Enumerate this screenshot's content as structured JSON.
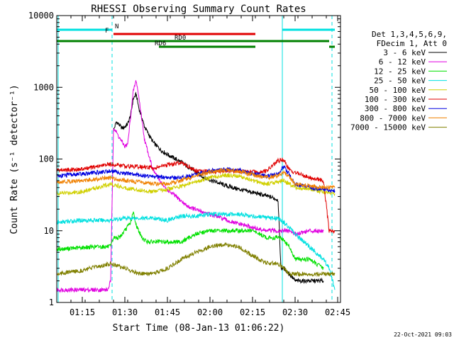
{
  "chart_data": {
    "type": "line",
    "title": "RHESSI Observing Summary Count Rates",
    "xlabel": "Start Time (08-Jan-13 01:06:22)",
    "ylabel": "Count Rate (s⁻¹ detector⁻¹)",
    "xlim": [
      "01:06",
      "02:46"
    ],
    "ylim": [
      1,
      10000
    ],
    "yscale": "log",
    "x_ticks": [
      "01:15",
      "01:30",
      "01:45",
      "02:00",
      "02:15",
      "02:30",
      "02:45"
    ],
    "y_ticks": [
      "1",
      "10",
      "100",
      "1000",
      "10000"
    ],
    "legend": {
      "placement": "right",
      "header": [
        "Det 1,3,4,5,6,9,",
        "FDecim 1, Att 0"
      ]
    },
    "timestamp": "22-Oct-2021 09:03",
    "flags": [
      {
        "label": "N",
        "color": "#00e0e0",
        "segments": [
          [
            "01:06",
            "01:25:30"
          ],
          [
            "02:25:30",
            "02:44"
          ]
        ]
      },
      {
        "label": "F",
        "color": "#e00000",
        "segments": [
          [
            "01:26",
            "02:16"
          ]
        ]
      },
      {
        "label": "RD0",
        "color": "#008000",
        "segments": [
          [
            "01:06",
            "02:16"
          ],
          [
            "02:16",
            "02:42"
          ]
        ]
      },
      {
        "label": "RD6",
        "color": "#008000",
        "segments": [
          [
            "01:42",
            "02:16"
          ],
          [
            "02:42",
            "02:44"
          ]
        ]
      }
    ],
    "series": [
      {
        "name": "3 - 6 keV",
        "color": "#000000",
        "x": [
          "01:26",
          "01:27",
          "01:28",
          "01:29",
          "01:30",
          "01:31",
          "01:32",
          "01:33",
          "01:34",
          "01:35",
          "01:37",
          "01:40",
          "01:43",
          "01:46",
          "01:50",
          "01:54",
          "01:58",
          "02:02",
          "02:06",
          "02:10",
          "02:14",
          "02:18",
          "02:22",
          "02:24",
          "02:25",
          "02:26",
          "02:28",
          "02:30",
          "02:35",
          "02:40"
        ],
        "y": [
          250,
          330,
          300,
          270,
          280,
          310,
          400,
          700,
          800,
          500,
          280,
          170,
          130,
          110,
          90,
          70,
          55,
          48,
          42,
          38,
          35,
          32,
          29,
          27,
          3,
          3,
          2.5,
          2,
          2,
          2
        ]
      },
      {
        "name": "6 - 12 keV",
        "color": "#e000e0",
        "x": [
          "01:06",
          "01:24",
          "01:25",
          "01:26",
          "01:28",
          "01:30",
          "01:31",
          "01:33",
          "01:34",
          "01:35",
          "01:37",
          "01:40",
          "01:44",
          "01:48",
          "01:52",
          "01:56",
          "02:00",
          "02:04",
          "02:08",
          "02:12",
          "02:15",
          "02:20",
          "02:24",
          "02:25",
          "02:28",
          "02:30",
          "02:35",
          "02:40"
        ],
        "y": [
          1.5,
          1.5,
          2,
          280,
          200,
          150,
          160,
          900,
          1250,
          700,
          180,
          70,
          40,
          30,
          22,
          19,
          17,
          15,
          13,
          12,
          11,
          10,
          10,
          10,
          10,
          9,
          10,
          10
        ]
      },
      {
        "name": "12 - 25 keV",
        "color": "#00e000",
        "x": [
          "01:06",
          "01:20",
          "01:25",
          "01:26",
          "01:28",
          "01:30",
          "01:32",
          "01:33",
          "01:34",
          "01:36",
          "01:38",
          "01:42",
          "01:46",
          "01:50",
          "01:55",
          "02:00",
          "02:05",
          "02:10",
          "02:15",
          "02:20",
          "02:24",
          "02:25",
          "02:28",
          "02:30",
          "02:35",
          "02:40"
        ],
        "y": [
          5.5,
          6,
          6,
          8,
          8,
          10,
          13,
          18,
          12,
          8,
          7,
          7,
          7,
          7,
          9,
          10,
          10,
          10,
          10,
          8,
          8,
          8,
          6,
          4,
          4,
          3
        ]
      },
      {
        "name": "25 - 50 keV",
        "color": "#00e0e0",
        "x": [
          "01:06",
          "01:15",
          "01:25",
          "01:30",
          "01:40",
          "01:45",
          "01:50",
          "01:55",
          "02:00",
          "02:05",
          "02:10",
          "02:15",
          "02:20",
          "02:24",
          "02:26",
          "02:28",
          "02:30",
          "02:35",
          "02:40",
          "02:42",
          "02:44"
        ],
        "y": [
          13,
          14,
          14,
          15,
          15,
          14,
          16,
          16,
          17,
          17,
          17,
          16,
          15,
          15,
          13,
          11,
          9,
          6,
          4,
          3,
          1.5
        ]
      },
      {
        "name": "50 - 100 keV",
        "color": "#d0d000",
        "x": [
          "01:06",
          "01:15",
          "01:25",
          "01:30",
          "01:35",
          "01:40",
          "01:45",
          "01:50",
          "01:55",
          "02:00",
          "02:05",
          "02:10",
          "02:15",
          "02:20",
          "02:24",
          "02:26",
          "02:28",
          "02:30",
          "02:35",
          "02:40",
          "02:44"
        ],
        "y": [
          33,
          35,
          45,
          40,
          37,
          35,
          38,
          42,
          48,
          55,
          60,
          58,
          50,
          45,
          48,
          50,
          45,
          40,
          38,
          35,
          33
        ]
      },
      {
        "name": "100 - 300 keV",
        "color": "#e00000",
        "x": [
          "01:06",
          "01:15",
          "01:25",
          "01:30",
          "01:35",
          "01:40",
          "01:45",
          "01:50",
          "01:55",
          "02:00",
          "02:05",
          "02:10",
          "02:15",
          "02:20",
          "02:24",
          "02:26",
          "02:28",
          "02:30",
          "02:35",
          "02:40",
          "02:42",
          "02:44"
        ],
        "y": [
          70,
          72,
          85,
          80,
          78,
          75,
          82,
          90,
          68,
          66,
          68,
          68,
          66,
          68,
          95,
          98,
          70,
          65,
          55,
          50,
          10,
          10
        ]
      },
      {
        "name": "300 - 800 keV",
        "color": "#0000e0",
        "x": [
          "01:06",
          "01:15",
          "01:25",
          "01:30",
          "01:35",
          "01:40",
          "01:45",
          "01:50",
          "01:55",
          "02:00",
          "02:05",
          "02:10",
          "02:15",
          "02:20",
          "02:24",
          "02:26",
          "02:28",
          "02:30",
          "02:35",
          "02:40",
          "02:44"
        ],
        "y": [
          58,
          62,
          68,
          63,
          60,
          57,
          55,
          55,
          60,
          68,
          72,
          70,
          62,
          58,
          62,
          80,
          60,
          45,
          40,
          38,
          36
        ]
      },
      {
        "name": "800 - 7000 keV",
        "color": "#f08000",
        "x": [
          "01:06",
          "01:15",
          "01:25",
          "01:30",
          "01:35",
          "01:40",
          "01:45",
          "01:50",
          "01:55",
          "02:00",
          "02:05",
          "02:10",
          "02:15",
          "02:20",
          "02:24",
          "02:26",
          "02:28",
          "02:30",
          "02:35",
          "02:40",
          "02:44"
        ],
        "y": [
          48,
          50,
          55,
          50,
          48,
          45,
          45,
          50,
          58,
          65,
          70,
          68,
          60,
          55,
          58,
          65,
          55,
          45,
          42,
          40,
          40
        ]
      },
      {
        "name": "7000 - 15000 keV",
        "color": "#808000",
        "x": [
          "01:06",
          "01:15",
          "01:25",
          "01:30",
          "01:35",
          "01:40",
          "01:45",
          "01:50",
          "01:55",
          "02:00",
          "02:05",
          "02:10",
          "02:15",
          "02:20",
          "02:24",
          "02:26",
          "02:28",
          "02:30",
          "02:35",
          "02:40",
          "02:44"
        ],
        "y": [
          2.5,
          2.8,
          3.5,
          3,
          2.5,
          2.5,
          3,
          4,
          5,
          6,
          6.5,
          6,
          4.5,
          3.5,
          3.5,
          3,
          2.5,
          2.5,
          2.5,
          2.5,
          2.5
        ]
      }
    ]
  }
}
